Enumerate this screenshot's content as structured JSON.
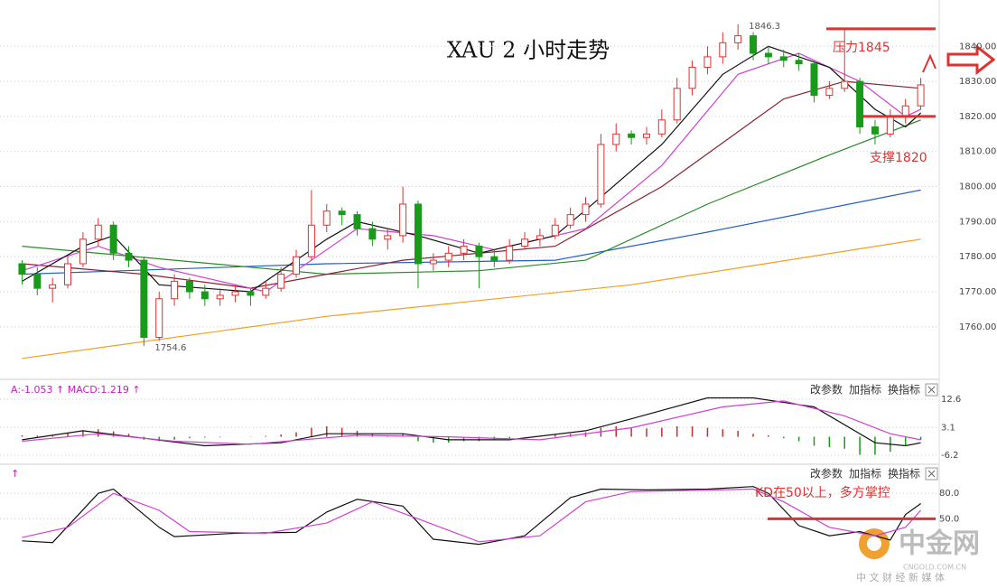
{
  "chart_data": [
    {
      "type": "candlestick",
      "title": "XAU 2 小时走势",
      "up_color": "#e03030",
      "down_color": "#1a9a1a",
      "ylim": [
        1747.6,
        1853.2
      ],
      "yticks": [
        {
          "value": 1760,
          "label": "1760.00"
        },
        {
          "value": 1770,
          "label": "1770.00"
        },
        {
          "value": 1780,
          "label": "1780.00"
        },
        {
          "value": 1790,
          "label": "1790.00"
        },
        {
          "value": 1800,
          "label": "1800.00"
        },
        {
          "value": 1810,
          "label": "1810.00"
        },
        {
          "value": 1820,
          "label": "1820.00"
        },
        {
          "value": 1830,
          "label": "1830.00"
        },
        {
          "value": 1840,
          "label": "1840.00"
        }
      ],
      "grid": true,
      "candles": [
        [
          1778,
          1779,
          1772,
          1775
        ],
        [
          1775,
          1777,
          1769,
          1771
        ],
        [
          1771,
          1774,
          1767,
          1772
        ],
        [
          1772,
          1780,
          1771,
          1778
        ],
        [
          1778,
          1787,
          1777,
          1785
        ],
        [
          1785,
          1791,
          1783,
          1789
        ],
        [
          1789,
          1790,
          1779,
          1781
        ],
        [
          1781,
          1783,
          1777,
          1779
        ],
        [
          1779,
          1780,
          1754.6,
          1757
        ],
        [
          1757,
          1770,
          1756,
          1768
        ],
        [
          1768,
          1775,
          1766,
          1773
        ],
        [
          1773,
          1774,
          1768,
          1770
        ],
        [
          1770,
          1772,
          1766,
          1768
        ],
        [
          1768,
          1771,
          1766,
          1769
        ],
        [
          1769,
          1772,
          1767,
          1770
        ],
        [
          1770,
          1771,
          1766,
          1769
        ],
        [
          1769,
          1773,
          1768,
          1771
        ],
        [
          1771,
          1777,
          1770,
          1775
        ],
        [
          1775,
          1782,
          1774,
          1780
        ],
        [
          1780,
          1799,
          1779,
          1789
        ],
        [
          1789,
          1795,
          1787,
          1793
        ],
        [
          1793,
          1794,
          1789,
          1792
        ],
        [
          1792,
          1793,
          1786,
          1788
        ],
        [
          1788,
          1790,
          1783,
          1785
        ],
        [
          1785,
          1788,
          1782,
          1786
        ],
        [
          1786,
          1800,
          1784,
          1795
        ],
        [
          1795,
          1796,
          1771,
          1778
        ],
        [
          1778,
          1781,
          1776,
          1779
        ],
        [
          1779,
          1783,
          1777,
          1781
        ],
        [
          1781,
          1785,
          1779,
          1783
        ],
        [
          1783,
          1784,
          1771,
          1780
        ],
        [
          1780,
          1782,
          1777,
          1779
        ],
        [
          1779,
          1785,
          1778,
          1783
        ],
        [
          1783,
          1787,
          1782,
          1785
        ],
        [
          1785,
          1788,
          1783,
          1786
        ],
        [
          1786,
          1791,
          1785,
          1789
        ],
        [
          1789,
          1794,
          1788,
          1792
        ],
        [
          1792,
          1797,
          1790,
          1795
        ],
        [
          1795,
          1815,
          1794,
          1812
        ],
        [
          1812,
          1818,
          1810,
          1815
        ],
        [
          1815,
          1816,
          1812,
          1814
        ],
        [
          1814,
          1817,
          1812,
          1815
        ],
        [
          1815,
          1822,
          1814,
          1819
        ],
        [
          1819,
          1831,
          1818,
          1828
        ],
        [
          1828,
          1836,
          1826,
          1834
        ],
        [
          1834,
          1840,
          1832,
          1837
        ],
        [
          1837,
          1844,
          1835,
          1841
        ],
        [
          1841,
          1846.3,
          1839,
          1843
        ],
        [
          1843,
          1844,
          1836,
          1838
        ],
        [
          1838,
          1840,
          1835,
          1837
        ],
        [
          1837,
          1839,
          1834,
          1836
        ],
        [
          1836,
          1838,
          1833,
          1835
        ],
        [
          1835,
          1836,
          1824,
          1826
        ],
        [
          1826,
          1830,
          1825,
          1828
        ],
        [
          1828,
          1845,
          1827,
          1830
        ],
        [
          1830,
          1831,
          1815,
          1817
        ],
        [
          1817,
          1819,
          1812,
          1815
        ],
        [
          1815,
          1822,
          1814,
          1820
        ],
        [
          1820,
          1825,
          1818,
          1823
        ],
        [
          1823,
          1831,
          1822,
          1829
        ]
      ],
      "lines": [
        {
          "color": "#f0a020",
          "x": [
            0,
            20,
            40,
            59
          ],
          "values": [
            1751,
            1763,
            1772,
            1785
          ]
        },
        {
          "color": "#2060c0",
          "x": [
            0,
            20,
            35,
            45,
            59
          ],
          "values": [
            1775,
            1778,
            1779,
            1787,
            1799
          ]
        },
        {
          "color": "#2a8a2a",
          "x": [
            0,
            10,
            20,
            30,
            37,
            45,
            53,
            59
          ],
          "values": [
            1783,
            1779,
            1775,
            1776,
            1779,
            1795,
            1809,
            1819
          ]
        },
        {
          "color": "#8a2030",
          "x": [
            0,
            8,
            15,
            25,
            35,
            42,
            50,
            54,
            59
          ],
          "values": [
            1778,
            1775,
            1771,
            1779,
            1783,
            1800,
            1825,
            1830,
            1828
          ]
        },
        {
          "color": "#d040d0",
          "x": [
            0,
            5,
            9,
            16,
            22,
            27,
            31,
            37,
            42,
            47,
            51,
            55,
            58,
            59
          ],
          "values": [
            1776,
            1783,
            1777,
            1770,
            1788,
            1786,
            1782,
            1788,
            1806,
            1832,
            1838,
            1830,
            1820,
            1822
          ]
        },
        {
          "color": "#111111",
          "x": [
            0,
            4,
            6,
            9,
            15,
            20,
            22,
            26,
            30,
            35,
            38,
            42,
            46,
            49,
            53,
            56,
            58,
            59
          ],
          "values": [
            1773,
            1783,
            1786,
            1772,
            1770,
            1785,
            1790,
            1786,
            1781,
            1786,
            1797,
            1812,
            1832,
            1840,
            1834,
            1822,
            1817,
            1821
          ]
        }
      ],
      "levels": [
        {
          "value": 1845,
          "label": "压力1845",
          "color": "#e03030"
        },
        {
          "value": 1820,
          "label": "支撑1820",
          "color": "#e03030"
        }
      ]
    },
    {
      "type": "macd",
      "header": "A:-1.053 ↑ MACD:1.219 ↑",
      "buttons": [
        "改参数",
        "加指标",
        "换指标"
      ],
      "up_color": "#c03030",
      "down_color": "#1a9a1a",
      "ylim": [
        -8.6,
        17.7
      ],
      "yticks": [
        12.6,
        3.1,
        -6.2
      ],
      "grid": true,
      "histogram": [
        0.5,
        0.4,
        0.6,
        1.2,
        2,
        2.5,
        1.8,
        1,
        -1,
        -1.5,
        -1,
        -0.5,
        -0.3,
        -0.2,
        0,
        0.1,
        0.3,
        0.8,
        1.5,
        3,
        3.5,
        3,
        2,
        1,
        0.5,
        1,
        -1.5,
        -2,
        -2,
        -1.5,
        -1.5,
        -1,
        -0.5,
        0,
        0.3,
        0.6,
        1,
        1.5,
        3,
        3.5,
        3,
        2.8,
        3,
        3.5,
        3.5,
        3,
        2.5,
        2,
        1,
        0.5,
        -0.5,
        -1.5,
        -3,
        -3.5,
        -4,
        -6,
        -6,
        -5,
        -3,
        -1
      ],
      "lines": [
        {
          "color": "#111111",
          "x": [
            0,
            4,
            8,
            12,
            17,
            20,
            25,
            28,
            32,
            37,
            40,
            45,
            48,
            52,
            56,
            58,
            59
          ],
          "values": [
            -1,
            2,
            -0.5,
            -3,
            -2,
            1,
            1,
            -1,
            -1,
            2,
            6,
            13,
            13,
            10,
            -2,
            -3,
            -2
          ]
        },
        {
          "color": "#d040d0",
          "x": [
            0,
            5,
            10,
            15,
            22,
            28,
            34,
            40,
            46,
            50,
            54,
            57,
            59
          ],
          "values": [
            -1.5,
            1,
            -1.5,
            -2.5,
            0.5,
            0,
            -1,
            3,
            10,
            12,
            7,
            1,
            -1
          ]
        }
      ]
    },
    {
      "type": "line",
      "header": "↑",
      "buttons": [
        "改参数",
        "加指标",
        "换指标"
      ],
      "ylim": [
        10,
        110
      ],
      "yticks": [
        {
          "value": 80,
          "label": "80.0"
        },
        {
          "value": 50,
          "label": "50.0"
        }
      ],
      "grid": true,
      "lines": [
        {
          "color": "#111111",
          "x": [
            0,
            2,
            5,
            6,
            9,
            10,
            14,
            18,
            20,
            22,
            25,
            27,
            30,
            33,
            36,
            38,
            41,
            45,
            48,
            49,
            51,
            53,
            55,
            57,
            58,
            59
          ],
          "values": [
            24,
            22,
            80,
            85,
            40,
            29,
            33,
            34,
            58,
            73,
            65,
            26,
            20,
            30,
            75,
            85,
            84,
            85,
            88,
            80,
            42,
            30,
            35,
            25,
            55,
            68
          ]
        },
        {
          "color": "#d040d0",
          "x": [
            0,
            3,
            6,
            9,
            11,
            16,
            20,
            23,
            26,
            30,
            34,
            37,
            40,
            48,
            50,
            53,
            56,
            58,
            59
          ],
          "values": [
            28,
            40,
            80,
            60,
            35,
            33,
            45,
            70,
            50,
            23,
            30,
            70,
            82,
            85,
            70,
            40,
            30,
            40,
            60
          ]
        }
      ],
      "levels": [
        {
          "value": 50,
          "label": "KD在50以上，多方掌控",
          "color": "#e03030"
        }
      ]
    }
  ],
  "watermark": {
    "brand": "中金网",
    "domain": "CNGOLD.COM.CN",
    "slogan": "中 文 财 经 新 媒 体"
  }
}
